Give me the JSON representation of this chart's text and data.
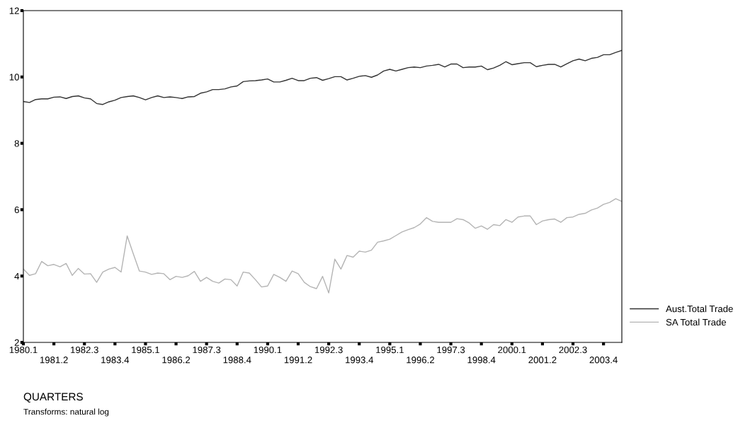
{
  "chart_data": {
    "type": "line",
    "xlabel": "QUARTERS",
    "annotations": [
      "Transforms: natural log"
    ],
    "categories": [
      "1980.1",
      null,
      null,
      null,
      null,
      "1981.2",
      null,
      null,
      null,
      null,
      "1982.3",
      null,
      null,
      null,
      null,
      "1983.4",
      null,
      null,
      null,
      null,
      "1985.1",
      null,
      null,
      null,
      null,
      "1986.2",
      null,
      null,
      null,
      null,
      "1987.3",
      null,
      null,
      null,
      null,
      "1988.4",
      null,
      null,
      null,
      null,
      "1990.1",
      null,
      null,
      null,
      null,
      "1991.2",
      null,
      null,
      null,
      null,
      "1992.3",
      null,
      null,
      null,
      null,
      "1993.4",
      null,
      null,
      null,
      null,
      "1995.1",
      null,
      null,
      null,
      null,
      "1996.2",
      null,
      null,
      null,
      null,
      "1997.3",
      null,
      null,
      null,
      null,
      "1998.4",
      null,
      null,
      null,
      null,
      "2000.1",
      null,
      null,
      null,
      null,
      "2001.2",
      null,
      null,
      null,
      null,
      "2002.3",
      null,
      null,
      null,
      null,
      "2003.4",
      null,
      null,
      null
    ],
    "series": [
      {
        "name": "Aust.Total Trade",
        "color": "#333333",
        "values": [
          9.26,
          9.23,
          9.32,
          9.34,
          9.34,
          9.39,
          9.4,
          9.35,
          9.41,
          9.43,
          9.37,
          9.34,
          9.2,
          9.17,
          9.25,
          9.3,
          9.38,
          9.41,
          9.43,
          9.38,
          9.31,
          9.38,
          9.43,
          9.38,
          9.4,
          9.38,
          9.35,
          9.4,
          9.41,
          9.51,
          9.55,
          9.62,
          9.62,
          9.64,
          9.7,
          9.73,
          9.86,
          9.88,
          9.89,
          9.91,
          9.94,
          9.85,
          9.85,
          9.9,
          9.96,
          9.89,
          9.89,
          9.96,
          9.98,
          9.9,
          9.95,
          10.01,
          10.01,
          9.91,
          9.96,
          10.02,
          10.04,
          9.99,
          10.06,
          10.18,
          10.23,
          10.18,
          10.23,
          10.28,
          10.3,
          10.28,
          10.33,
          10.35,
          10.38,
          10.3,
          10.39,
          10.39,
          10.28,
          10.3,
          10.3,
          10.33,
          10.22,
          10.27,
          10.35,
          10.46,
          10.37,
          10.4,
          10.43,
          10.43,
          10.31,
          10.35,
          10.38,
          10.38,
          10.3,
          10.4,
          10.49,
          10.54,
          10.49,
          10.56,
          10.59,
          10.67,
          10.67,
          10.74,
          10.8
        ]
      },
      {
        "name": "SA Total Trade",
        "color": "#b4b4b4",
        "values": [
          4.21,
          4.02,
          4.07,
          4.44,
          4.31,
          4.35,
          4.28,
          4.38,
          4.02,
          4.23,
          4.06,
          4.07,
          3.81,
          4.12,
          4.21,
          4.26,
          4.12,
          5.21,
          4.67,
          4.15,
          4.12,
          4.05,
          4.09,
          4.07,
          3.89,
          3.99,
          3.96,
          4.01,
          4.14,
          3.84,
          3.96,
          3.84,
          3.79,
          3.91,
          3.89,
          3.7,
          4.12,
          4.09,
          3.89,
          3.67,
          3.7,
          4.05,
          3.96,
          3.84,
          4.15,
          4.07,
          3.81,
          3.68,
          3.62,
          3.99,
          3.49,
          4.51,
          4.21,
          4.62,
          4.57,
          4.75,
          4.72,
          4.78,
          5.02,
          5.06,
          5.11,
          5.22,
          5.33,
          5.4,
          5.46,
          5.57,
          5.76,
          5.65,
          5.62,
          5.62,
          5.62,
          5.73,
          5.7,
          5.6,
          5.44,
          5.51,
          5.41,
          5.55,
          5.52,
          5.7,
          5.62,
          5.78,
          5.81,
          5.81,
          5.55,
          5.66,
          5.7,
          5.72,
          5.62,
          5.76,
          5.78,
          5.86,
          5.89,
          5.99,
          6.05,
          6.16,
          6.22,
          6.33,
          6.25
        ]
      }
    ],
    "ylim": [
      2,
      12
    ],
    "yticks": [
      2,
      4,
      6,
      8,
      10,
      12
    ],
    "legend": "right",
    "grid": false
  }
}
